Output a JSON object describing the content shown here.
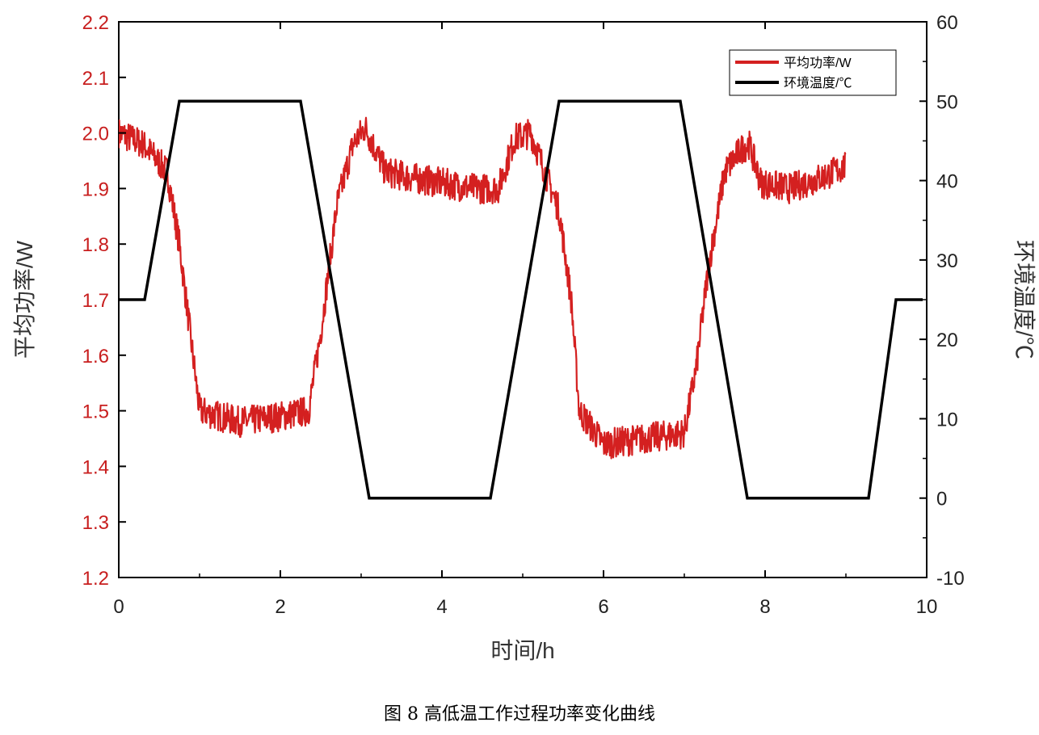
{
  "caption": "图 8  高低温工作过程功率变化曲线",
  "colors": {
    "power": "#d42020",
    "temperature": "#000000",
    "axis": "#000000",
    "left_ticks": "#c81e1e"
  },
  "chart_data": {
    "type": "line",
    "xlabel": "时间/h",
    "ylabel_left": "平均功率/W",
    "ylabel_right": "环境温度/℃",
    "xlim": [
      0,
      10
    ],
    "ylim_left": [
      1.2,
      2.2
    ],
    "ylim_right": [
      -10,
      60
    ],
    "x_ticks": [
      "0",
      "2",
      "4",
      "6",
      "8",
      "10"
    ],
    "y_left_ticks": [
      "1.2",
      "1.3",
      "1.4",
      "1.5",
      "1.6",
      "1.7",
      "1.8",
      "1.9",
      "2.0",
      "2.1",
      "2.2"
    ],
    "y_right_ticks": [
      "-10",
      "0",
      "10",
      "20",
      "30",
      "40",
      "50",
      "60"
    ],
    "grid": false,
    "legend_position": "top-right",
    "series": [
      {
        "name": "平均功率/W",
        "axis": "left",
        "x": [
          0,
          0.3,
          0.6,
          0.75,
          0.9,
          1.0,
          1.5,
          2.0,
          2.35,
          2.5,
          2.7,
          2.9,
          3.05,
          3.3,
          3.6,
          4.0,
          4.4,
          4.7,
          4.9,
          5.1,
          5.3,
          5.45,
          5.6,
          5.7,
          6.0,
          6.5,
          7.0,
          7.15,
          7.3,
          7.5,
          7.7,
          7.8,
          7.95,
          8.3,
          8.7,
          9.0
        ],
        "y": [
          2.0,
          1.98,
          1.93,
          1.8,
          1.62,
          1.5,
          1.48,
          1.49,
          1.5,
          1.64,
          1.87,
          1.98,
          2.01,
          1.93,
          1.92,
          1.91,
          1.9,
          1.9,
          1.99,
          2.0,
          1.92,
          1.86,
          1.7,
          1.5,
          1.44,
          1.45,
          1.46,
          1.58,
          1.76,
          1.93,
          1.97,
          1.98,
          1.91,
          1.9,
          1.92,
          1.94
        ]
      },
      {
        "name": "环境温度/℃",
        "axis": "right",
        "x": [
          0,
          0.32,
          0.75,
          2.25,
          3.1,
          4.6,
          5.45,
          6.95,
          7.78,
          9.28,
          9.62,
          9.95
        ],
        "y": [
          25,
          25,
          50,
          50,
          0,
          0,
          50,
          50,
          0,
          0,
          25,
          25
        ]
      }
    ]
  }
}
